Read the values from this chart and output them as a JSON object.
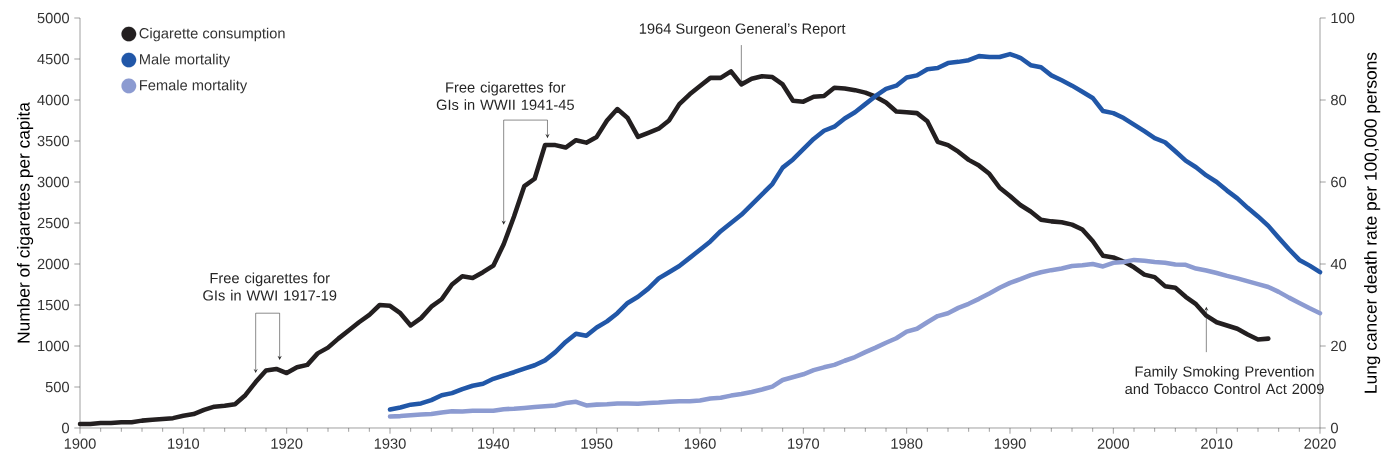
{
  "chart_data": {
    "type": "line",
    "xlim": [
      1900,
      2020
    ],
    "xticks": [
      1900,
      1910,
      1920,
      1930,
      1940,
      1950,
      1960,
      1970,
      1980,
      1990,
      2000,
      2010,
      2020
    ],
    "ylim": [
      0,
      5000
    ],
    "yticks": [
      0,
      500,
      1000,
      1500,
      2000,
      2500,
      3000,
      3500,
      4000,
      4500,
      5000
    ],
    "y2lim": [
      0,
      100
    ],
    "y2ticks": [
      0,
      20,
      40,
      60,
      80,
      100
    ],
    "ylabel": "Number of cigarettes per capita",
    "y2label": "Lung cancer death rate per 100,000 persons",
    "legend": "top left",
    "grid": false,
    "line_style": "solid",
    "annotations": [
      {
        "text": "Free cigarettes for GIs in WWI 1917-19",
        "x": 1917,
        "y": 670
      },
      {
        "text": "Free cigarettes for GIs in WWII 1941-45",
        "x": 1941,
        "y": 2480
      },
      {
        "text": "1964 Surgeon General’s Report",
        "x": 1964,
        "y": 4190
      },
      {
        "text": "Family Smoking Prevention and Tobacco Control Act 2009",
        "x": 2009,
        "y": 1480
      }
    ],
    "series": [
      {
        "name": "Cigarette consumption",
        "color": "#231f20",
        "x": [
          1900,
          1901,
          1902,
          1903,
          1904,
          1905,
          1906,
          1907,
          1908,
          1909,
          1910,
          1911,
          1912,
          1913,
          1914,
          1915,
          1916,
          1917,
          1918,
          1919,
          1920,
          1921,
          1922,
          1923,
          1924,
          1925,
          1926,
          1927,
          1928,
          1929,
          1930,
          1931,
          1932,
          1933,
          1934,
          1935,
          1936,
          1937,
          1938,
          1939,
          1940,
          1941,
          1942,
          1943,
          1944,
          1945,
          1946,
          1947,
          1948,
          1949,
          1950,
          1951,
          1952,
          1953,
          1954,
          1955,
          1956,
          1957,
          1958,
          1959,
          1960,
          1961,
          1962,
          1963,
          1964,
          1965,
          1966,
          1967,
          1968,
          1969,
          1970,
          1971,
          1972,
          1973,
          1974,
          1975,
          1976,
          1977,
          1978,
          1979,
          1980,
          1981,
          1982,
          1983,
          1984,
          1985,
          1986,
          1987,
          1988,
          1989,
          1990,
          1991,
          1992,
          1993,
          1994,
          1995,
          1996,
          1997,
          1998,
          1999,
          2000,
          2001,
          2002,
          2003,
          2004,
          2005,
          2006,
          2007,
          2008,
          2009,
          2010,
          2011,
          2012,
          2013,
          2014,
          2015
        ],
        "values": [
          50,
          50,
          60,
          60,
          70,
          70,
          90,
          100,
          110,
          120,
          150,
          170,
          220,
          260,
          270,
          290,
          400,
          560,
          700,
          720,
          670,
          740,
          770,
          910,
          980,
          1090,
          1190,
          1290,
          1380,
          1500,
          1490,
          1400,
          1250,
          1340,
          1480,
          1570,
          1750,
          1850,
          1830,
          1900,
          1980,
          2240,
          2580,
          2950,
          3040,
          3450,
          3450,
          3420,
          3510,
          3480,
          3550,
          3750,
          3890,
          3780,
          3550,
          3600,
          3650,
          3750,
          3950,
          4070,
          4170,
          4270,
          4270,
          4350,
          4190,
          4260,
          4290,
          4280,
          4190,
          3990,
          3980,
          4040,
          4050,
          4150,
          4140,
          4120,
          4090,
          4040,
          3970,
          3860,
          3850,
          3840,
          3740,
          3490,
          3450,
          3370,
          3270,
          3200,
          3100,
          2930,
          2830,
          2720,
          2640,
          2540,
          2520,
          2510,
          2480,
          2420,
          2280,
          2100,
          2080,
          2030,
          1960,
          1870,
          1840,
          1730,
          1710,
          1600,
          1510,
          1370,
          1290,
          1250,
          1210,
          1140,
          1080,
          1090
        ]
      },
      {
        "name": "Male mortality",
        "color": "#2157a8",
        "axis": "y2",
        "x": [
          1930,
          1931,
          1932,
          1933,
          1934,
          1935,
          1936,
          1937,
          1938,
          1939,
          1940,
          1941,
          1942,
          1943,
          1944,
          1945,
          1946,
          1947,
          1948,
          1949,
          1950,
          1951,
          1952,
          1953,
          1954,
          1955,
          1956,
          1957,
          1958,
          1959,
          1960,
          1961,
          1962,
          1963,
          1964,
          1965,
          1966,
          1967,
          1968,
          1969,
          1970,
          1971,
          1972,
          1973,
          1974,
          1975,
          1976,
          1977,
          1978,
          1979,
          1980,
          1981,
          1982,
          1983,
          1984,
          1985,
          1986,
          1987,
          1988,
          1989,
          1990,
          1991,
          1992,
          1993,
          1994,
          1995,
          1996,
          1997,
          1998,
          1999,
          2000,
          2001,
          2002,
          2003,
          2004,
          2005,
          2006,
          2007,
          2008,
          2009,
          2010,
          2011,
          2012,
          2013,
          2014,
          2015,
          2016,
          2017,
          2018,
          2019,
          2020
        ],
        "values": [
          4.5,
          5,
          5.7,
          6,
          6.8,
          8,
          8.5,
          9.5,
          10.3,
          10.8,
          12,
          12.8,
          13.6,
          14.5,
          15.3,
          16.5,
          18.5,
          21,
          23,
          22.5,
          24.5,
          26,
          28,
          30.5,
          32,
          34,
          36.5,
          38,
          39.5,
          41.5,
          43.5,
          45.5,
          48,
          50,
          52,
          54.5,
          57,
          59.5,
          63.5,
          65.5,
          68,
          70.5,
          72.5,
          73.5,
          75.5,
          77,
          79,
          81,
          82.7,
          83.5,
          85.5,
          86,
          87.5,
          87.8,
          89,
          89.3,
          89.7,
          90.7,
          90.5,
          90.5,
          91.2,
          90.3,
          88.5,
          88,
          86,
          84.8,
          83.5,
          82,
          80.5,
          77.3,
          76.8,
          75.6,
          74,
          72.4,
          70.7,
          69.7,
          67.5,
          65.2,
          63.6,
          61.6,
          60,
          57.9,
          56,
          53.7,
          51.6,
          49.3,
          46.4,
          43.6,
          41,
          39.6,
          38
        ]
      },
      {
        "name": "Female mortality",
        "color": "#8c9bd1",
        "axis": "y2",
        "x": [
          1930,
          1931,
          1932,
          1933,
          1934,
          1935,
          1936,
          1937,
          1938,
          1939,
          1940,
          1941,
          1942,
          1943,
          1944,
          1945,
          1946,
          1947,
          1948,
          1949,
          1950,
          1951,
          1952,
          1953,
          1954,
          1955,
          1956,
          1957,
          1958,
          1959,
          1960,
          1961,
          1962,
          1963,
          1964,
          1965,
          1966,
          1967,
          1968,
          1969,
          1970,
          1971,
          1972,
          1973,
          1974,
          1975,
          1976,
          1977,
          1978,
          1979,
          1980,
          1981,
          1982,
          1983,
          1984,
          1985,
          1986,
          1987,
          1988,
          1989,
          1990,
          1991,
          1992,
          1993,
          1994,
          1995,
          1996,
          1997,
          1998,
          1999,
          2000,
          2001,
          2002,
          2003,
          2004,
          2005,
          2006,
          2007,
          2008,
          2009,
          2010,
          2011,
          2012,
          2013,
          2014,
          2015,
          2016,
          2017,
          2018,
          2019,
          2020
        ],
        "values": [
          2.8,
          2.9,
          3.1,
          3.3,
          3.4,
          3.8,
          4.1,
          4,
          4.2,
          4.2,
          4.2,
          4.6,
          4.7,
          4.9,
          5.1,
          5.3,
          5.5,
          6.1,
          6.4,
          5.5,
          5.7,
          5.8,
          6,
          6,
          5.9,
          6.1,
          6.2,
          6.4,
          6.5,
          6.5,
          6.7,
          7.2,
          7.4,
          7.9,
          8.3,
          8.8,
          9.4,
          10.1,
          11.7,
          12.4,
          13.1,
          14.1,
          14.8,
          15.4,
          16.4,
          17.3,
          18.5,
          19.6,
          20.8,
          21.9,
          23.5,
          24.2,
          25.8,
          27.3,
          28,
          29.3,
          30.3,
          31.5,
          32.8,
          34.2,
          35.4,
          36.3,
          37.3,
          38,
          38.5,
          38.9,
          39.5,
          39.7,
          40,
          39.4,
          40.3,
          40.5,
          41,
          40.8,
          40.5,
          40.3,
          39.9,
          39.8,
          38.9,
          38.4,
          37.8,
          37.1,
          36.5,
          35.8,
          35.1,
          34.4,
          33.2,
          31.8,
          30.5,
          29.2,
          28
        ]
      }
    ]
  }
}
